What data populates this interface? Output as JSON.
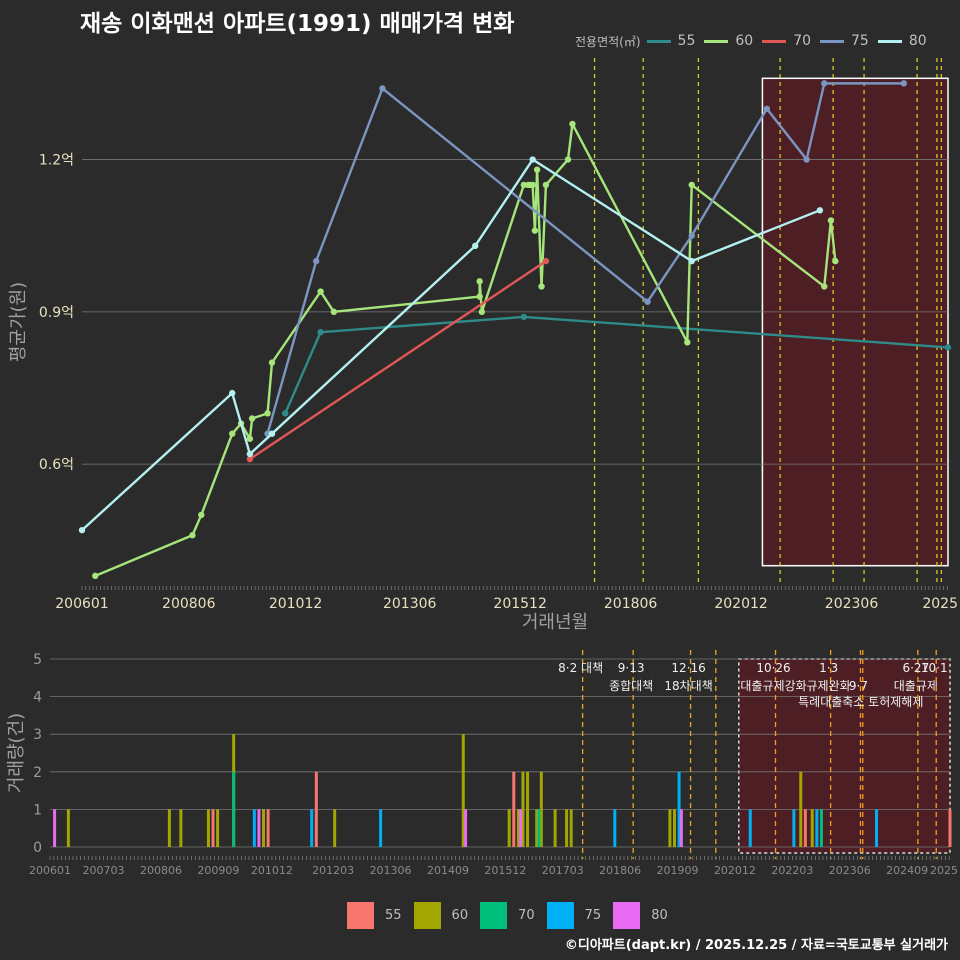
{
  "title": "재송 이화맨션 아파트(1991) 매매가격 변화",
  "caption": "©디아파트(dapt.kr) / 2025.12.25 / 자료=국토교통부 실거래가",
  "legend_title": "전용면적(㎡)",
  "series_meta": [
    {
      "name": "55",
      "line_color": "#2e8b8a",
      "bar_color": "#f8766d"
    },
    {
      "name": "60",
      "line_color": "#a5e57a",
      "bar_color": "#a3a500"
    },
    {
      "name": "70",
      "line_color": "#e05757",
      "bar_color": "#00bf7d"
    },
    {
      "name": "75",
      "line_color": "#7b96c2",
      "bar_color": "#00b0f6"
    },
    {
      "name": "80",
      "line_color": "#b3f0ef",
      "bar_color": "#e76bf3"
    }
  ],
  "chart_data": [
    {
      "type": "line",
      "title": "재송 이화맨션 아파트(1991) 매매가격 변화",
      "xlabel": "거래년월",
      "ylabel": "평균가(원)",
      "xlim": [
        2006.0,
        2025.6
      ],
      "ylim": [
        0.36,
        1.4
      ],
      "x_ticks": [
        2006.0,
        2008.4167,
        2010.8333,
        2013.4167,
        2015.9167,
        2018.4167,
        2020.9167,
        2023.4167,
        2025.0
      ],
      "x_tick_labels": [
        "200601",
        "200806",
        "201012",
        "201306",
        "201512",
        "201806",
        "202012",
        "202306",
        "2025"
      ],
      "y_ticks": [
        0.6,
        0.9,
        1.2
      ],
      "y_tick_labels": [
        "0.6억",
        "0.9억",
        "1.2억"
      ],
      "highlight_range": [
        2021.4,
        2025.6,
        0.4,
        1.36
      ],
      "policy_lines": [
        2017.6,
        2018.7,
        2019.95,
        2021.8,
        2023.0,
        2023.7,
        2024.9,
        2025.35,
        2025.45
      ],
      "series": [
        {
          "name": "55",
          "x": [
            2010.6,
            2011.4,
            2016.0,
            2025.6
          ],
          "y": [
            0.7,
            0.86,
            0.89,
            0.83
          ]
        },
        {
          "name": "60",
          "x": [
            2006.3,
            2008.5,
            2008.7,
            2009.4,
            2009.6,
            2009.8,
            2009.85,
            2010.2,
            2010.3,
            2011.4,
            2011.7,
            2015.0,
            2015.0,
            2015.05,
            2016.0,
            2016.1,
            2016.15,
            2016.2,
            2016.25,
            2016.3,
            2016.4,
            2016.5,
            2017.0,
            2017.1,
            2019.7,
            2019.8,
            2022.8,
            2022.95,
            2023.05
          ],
          "y": [
            0.38,
            0.46,
            0.5,
            0.66,
            0.68,
            0.65,
            0.69,
            0.7,
            0.8,
            0.94,
            0.9,
            0.93,
            0.96,
            0.9,
            1.15,
            1.15,
            1.15,
            1.15,
            1.06,
            1.18,
            0.95,
            1.15,
            1.2,
            1.27,
            0.84,
            1.15,
            0.95,
            1.08,
            1.0
          ]
        },
        {
          "name": "70",
          "x": [
            2009.8,
            2016.5
          ],
          "y": [
            0.61,
            1.0
          ]
        },
        {
          "name": "75",
          "x": [
            2010.2,
            2011.3,
            2012.8,
            2018.8,
            2019.8,
            2021.5,
            2022.4,
            2022.8,
            2024.6
          ],
          "y": [
            0.66,
            1.0,
            1.34,
            0.92,
            1.05,
            1.3,
            1.2,
            1.35,
            1.35
          ]
        },
        {
          "name": "80",
          "x": [
            2006.0,
            2009.4,
            2009.8,
            2010.3,
            2014.9,
            2016.2,
            2019.8,
            2022.7
          ],
          "y": [
            0.47,
            0.74,
            0.62,
            0.66,
            1.03,
            1.2,
            1.0,
            1.1
          ]
        }
      ]
    },
    {
      "type": "bar",
      "ylabel": "거래량(건)",
      "xlim": [
        2006.0,
        2025.6
      ],
      "ylim": [
        0,
        5
      ],
      "y_ticks": [
        0,
        1,
        2,
        3,
        4,
        5
      ],
      "x_ticks": [
        2006.0,
        2007.1667,
        2008.4167,
        2009.6667,
        2010.8333,
        2012.1667,
        2013.4167,
        2014.6667,
        2015.9167,
        2017.1667,
        2018.4167,
        2019.6667,
        2020.9167,
        2022.1667,
        2023.4167,
        2024.6667,
        2025.0
      ],
      "x_tick_labels": [
        "200601",
        "200703",
        "200806",
        "200909",
        "201012",
        "201203",
        "201306",
        "201409",
        "201512",
        "201703",
        "201806",
        "201909",
        "202012",
        "202203",
        "202306",
        "202409",
        "2025"
      ],
      "highlight_range": [
        2021.0,
        2025.6
      ],
      "bars": [
        {
          "x": 2006.1,
          "series": "80",
          "value": 1
        },
        {
          "x": 2006.4,
          "series": "60",
          "value": 1
        },
        {
          "x": 2008.6,
          "series": "60",
          "value": 1
        },
        {
          "x": 2008.85,
          "series": "60",
          "value": 1
        },
        {
          "x": 2009.45,
          "series": "60",
          "value": 1
        },
        {
          "x": 2009.55,
          "series": "55",
          "value": 1
        },
        {
          "x": 2009.65,
          "series": "60",
          "value": 1
        },
        {
          "x": 2010.0,
          "series": "70",
          "value": 2
        },
        {
          "x": 2010.0,
          "series": "60",
          "value": 3
        },
        {
          "x": 2010.45,
          "series": "75",
          "value": 1
        },
        {
          "x": 2010.55,
          "series": "80",
          "value": 1
        },
        {
          "x": 2010.65,
          "series": "60",
          "value": 1
        },
        {
          "x": 2010.75,
          "series": "55",
          "value": 1
        },
        {
          "x": 2011.7,
          "series": "75",
          "value": 1
        },
        {
          "x": 2011.8,
          "series": "55",
          "value": 2
        },
        {
          "x": 2012.2,
          "series": "60",
          "value": 1
        },
        {
          "x": 2013.2,
          "series": "75",
          "value": 1
        },
        {
          "x": 2015.0,
          "series": "60",
          "value": 3
        },
        {
          "x": 2015.05,
          "series": "80",
          "value": 1
        },
        {
          "x": 2016.0,
          "series": "60",
          "value": 1
        },
        {
          "x": 2016.1,
          "series": "55",
          "value": 2
        },
        {
          "x": 2016.2,
          "series": "60",
          "value": 1
        },
        {
          "x": 2016.25,
          "series": "80",
          "value": 1
        },
        {
          "x": 2016.3,
          "series": "60",
          "value": 2
        },
        {
          "x": 2016.4,
          "series": "60",
          "value": 2
        },
        {
          "x": 2016.6,
          "series": "60",
          "value": 1
        },
        {
          "x": 2016.65,
          "series": "70",
          "value": 1
        },
        {
          "x": 2016.7,
          "series": "60",
          "value": 2
        },
        {
          "x": 2017.0,
          "series": "60",
          "value": 1
        },
        {
          "x": 2017.25,
          "series": "60",
          "value": 1
        },
        {
          "x": 2017.35,
          "series": "60",
          "value": 1
        },
        {
          "x": 2018.3,
          "series": "75",
          "value": 1
        },
        {
          "x": 2019.5,
          "series": "60",
          "value": 1
        },
        {
          "x": 2019.6,
          "series": "60",
          "value": 1
        },
        {
          "x": 2019.7,
          "series": "75",
          "value": 2
        },
        {
          "x": 2019.75,
          "series": "80",
          "value": 1
        },
        {
          "x": 2021.25,
          "series": "75",
          "value": 1
        },
        {
          "x": 2022.2,
          "series": "75",
          "value": 1
        },
        {
          "x": 2022.35,
          "series": "60",
          "value": 2
        },
        {
          "x": 2022.45,
          "series": "55",
          "value": 1
        },
        {
          "x": 2022.6,
          "series": "60",
          "value": 1
        },
        {
          "x": 2022.7,
          "series": "75",
          "value": 1
        },
        {
          "x": 2022.8,
          "series": "70",
          "value": 1
        },
        {
          "x": 2024.0,
          "series": "75",
          "value": 1
        },
        {
          "x": 2025.6,
          "series": "55",
          "value": 1
        }
      ],
      "policies": [
        {
          "x": 2017.6,
          "label": "8·2 대책",
          "label2": ""
        },
        {
          "x": 2018.7,
          "label": "9·13",
          "label2": "종합대책"
        },
        {
          "x": 2019.95,
          "label": "12·16",
          "label2": "18차대책"
        },
        {
          "x": 2020.5,
          "label": "",
          "label2": ""
        },
        {
          "x": 2021.8,
          "label": "10·26",
          "label2": "대출규제강화"
        },
        {
          "x": 2023.0,
          "label": "1·3",
          "label2": "규제완화"
        },
        {
          "x": 2023.65,
          "label": "",
          "label2": "9·7"
        },
        {
          "x": 2023.7,
          "label": "",
          "label2": "특례대출축소 토허제해제"
        },
        {
          "x": 2024.9,
          "label": "6·27",
          "label2": "대출규제"
        },
        {
          "x": 2025.3,
          "label": "10·1",
          "label2": ""
        }
      ]
    }
  ]
}
